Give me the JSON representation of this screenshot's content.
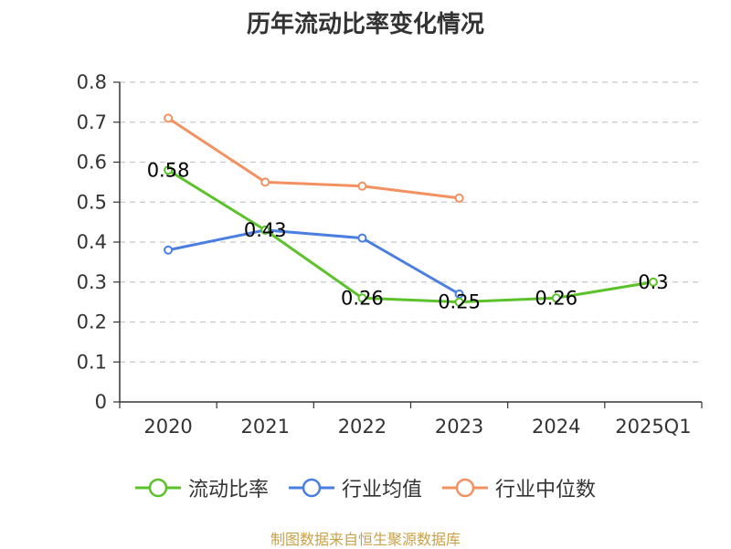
{
  "chart_data": {
    "type": "line",
    "title": "历年流动比率变化情况",
    "categories": [
      "2020",
      "2021",
      "2022",
      "2023",
      "2024",
      "2025Q1"
    ],
    "ylim": [
      0,
      0.8
    ],
    "yticks": [
      "0",
      "0.1",
      "0.2",
      "0.3",
      "0.4",
      "0.5",
      "0.6",
      "0.7",
      "0.8"
    ],
    "grid": true,
    "legend_position": "bottom",
    "series": [
      {
        "name": "流动比率",
        "color": "#5cc22a",
        "values": [
          0.58,
          0.43,
          0.26,
          0.25,
          0.26,
          0.3
        ],
        "labels": [
          "0.58",
          "0.43",
          "0.26",
          "0.25",
          "0.26",
          "0.3"
        ]
      },
      {
        "name": "行业均值",
        "color": "#4a7ee0",
        "values": [
          0.38,
          0.43,
          0.41,
          0.27,
          null,
          null
        ]
      },
      {
        "name": "行业中位数",
        "color": "#f39160",
        "values": [
          0.71,
          0.55,
          0.54,
          0.51,
          null,
          null
        ]
      }
    ]
  },
  "source": "制图数据来自恒生聚源数据库"
}
